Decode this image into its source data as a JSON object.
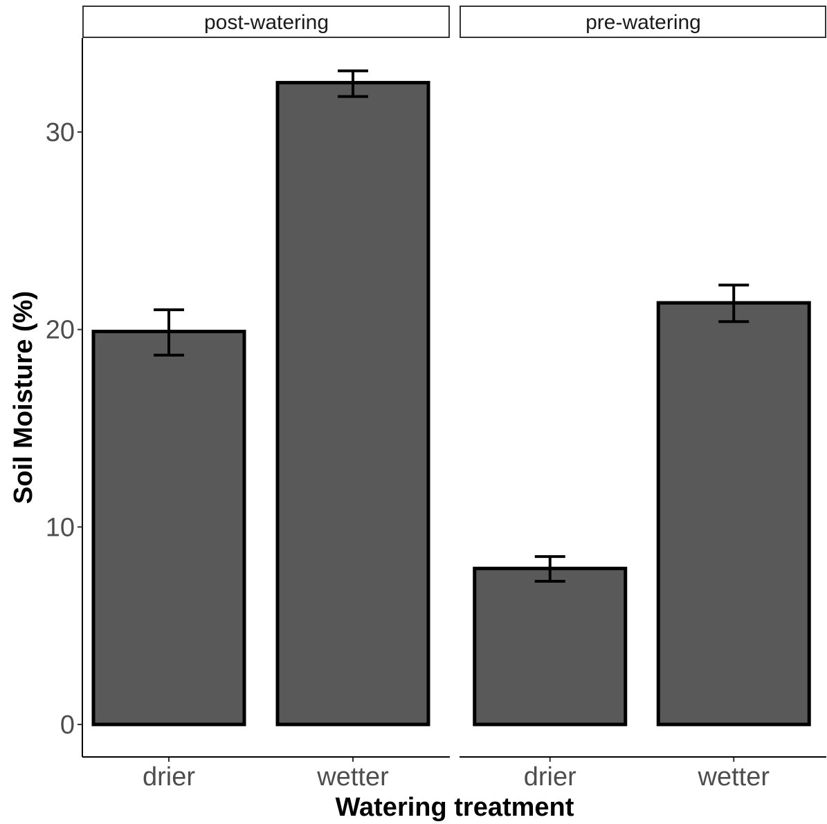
{
  "chart_data": {
    "type": "bar",
    "xlabel": "Watering treatment",
    "ylabel": "Soil Moisture (%)",
    "ylim": [
      0,
      33.9
    ],
    "y_ticks": [
      0,
      10,
      20,
      30
    ],
    "grid": false,
    "legend": "none",
    "bar_fill": "#595959",
    "bar_outline": "#000000",
    "facets": [
      {
        "label": "post-watering",
        "categories": [
          "drier",
          "wetter"
        ],
        "values": [
          19.9,
          32.5
        ],
        "error_low": [
          18.7,
          31.8
        ],
        "error_high": [
          21.0,
          33.1
        ]
      },
      {
        "label": "pre-watering",
        "categories": [
          "drier",
          "wetter"
        ],
        "values": [
          7.9,
          21.35
        ],
        "error_low": [
          7.25,
          20.4
        ],
        "error_high": [
          8.5,
          22.25
        ]
      }
    ]
  }
}
